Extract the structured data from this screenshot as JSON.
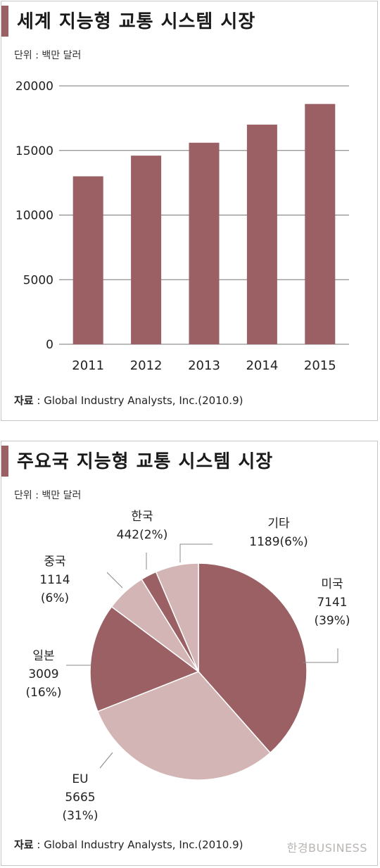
{
  "charts": {
    "bar": {
      "title": "세계 지능형 교통 시스템 시장",
      "unit": "단위 : 백만 달러",
      "source_label": "자료",
      "source_text": " : Global Industry Analysts, Inc.(2010.9)"
    },
    "pie": {
      "title": "주요국 지능형 교통 시스템 시장",
      "unit": "단위 : 백만 달러",
      "source_label": "자료",
      "source_text": " : Global Industry Analysts, Inc.(2010.9)"
    }
  },
  "watermark": "한경BUSINESS",
  "chart_data": [
    {
      "type": "bar",
      "title": "세계 지능형 교통 시스템 시장",
      "unit": "단위 : 백만 달러",
      "categories": [
        "2011",
        "2012",
        "2013",
        "2014",
        "2015"
      ],
      "values": [
        13000,
        14600,
        15600,
        17000,
        18600
      ],
      "ylim": [
        0,
        20000
      ],
      "yticks": [
        0,
        5000,
        10000,
        15000,
        20000
      ],
      "grid": true,
      "colors": {
        "bar": "#9a6063",
        "grid": "#777777"
      }
    },
    {
      "type": "pie",
      "title": "주요국 지능형 교통 시스템 시장",
      "unit": "단위 : 백만 달러",
      "slices": [
        {
          "name": "미국",
          "value": 7141,
          "percent": "39%",
          "color": "#9a6063"
        },
        {
          "name": "EU",
          "value": 5665,
          "percent": "31%",
          "color": "#d4b5b6"
        },
        {
          "name": "일본",
          "value": 3009,
          "percent": "16%",
          "color": "#9a6063"
        },
        {
          "name": "중국",
          "value": 1114,
          "percent": "6%",
          "color": "#d4b5b6"
        },
        {
          "name": "한국",
          "value": 442,
          "percent": "2%",
          "color": "#9a6063"
        },
        {
          "name": "기타",
          "value": 1189,
          "percent": "6%",
          "color": "#d4b5b6"
        }
      ]
    }
  ]
}
